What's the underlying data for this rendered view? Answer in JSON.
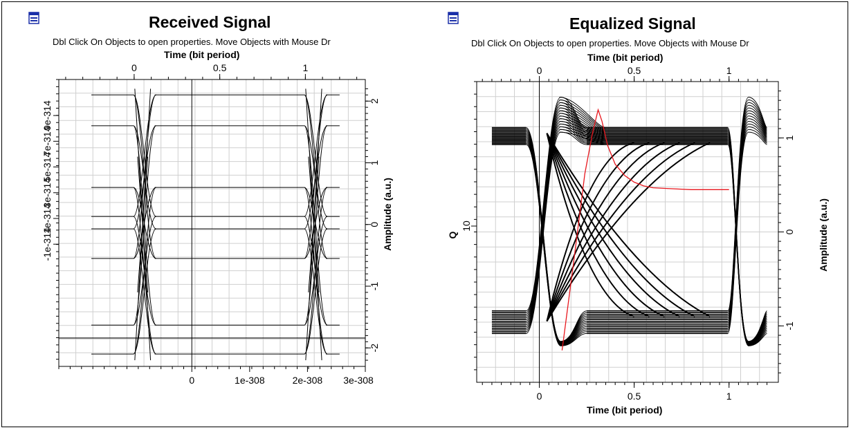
{
  "icons": {
    "left": "window-icon",
    "right": "window-icon"
  },
  "colors": {
    "trace": "#000000",
    "q_curve": "#e8161d",
    "grid": "#cfcfcf"
  },
  "chart_data": [
    {
      "type": "line",
      "title": "Received Signal",
      "subtitle": "Dbl Click On Objects to open properties.  Move Objects with Mouse Dr",
      "top_axis": {
        "label": "Time (bit period)",
        "range": [
          -0.44,
          1.35
        ],
        "ticks": [
          "0",
          "0.5",
          "1"
        ]
      },
      "bottom_axis": {
        "label": "",
        "range": [
          -2.3e-308,
          3e-308
        ],
        "ticks": [
          "0",
          "1e-308",
          "2e-308",
          "3e-308"
        ]
      },
      "left_axis": {
        "label": "",
        "range": [
          -1.05e-313,
          1.18e-313
        ],
        "ticks": [
          "-1e-314",
          "1e-314",
          "3e-314",
          "5e-314",
          "7e-314",
          "9e-314"
        ]
      },
      "right_axis": {
        "label": "Amplitude (a.u.)",
        "range": [
          -2.3,
          2.35
        ],
        "ticks": [
          "-2",
          "-1",
          "0",
          "1",
          "2"
        ]
      },
      "eye": {
        "levels": [
          2.1,
          1.6,
          0.6,
          0.13,
          -0.07,
          -0.55,
          -1.63,
          -2.1
        ],
        "left_crossing": 0.02,
        "right_crossing": 1.02,
        "transition_width": 0.1,
        "x_start": -0.25,
        "x_end": 1.2
      },
      "horizontal_line": {
        "y": -1.84
      },
      "grid": true
    },
    {
      "type": "line",
      "title": "Equalized Signal",
      "subtitle": "Dbl Click On Objects to open properties.  Move Objects with Mouse Dr",
      "top_axis": {
        "label": "Time (bit period)",
        "range": [
          -0.33,
          1.26
        ],
        "ticks": [
          "0",
          "0.5",
          "1"
        ]
      },
      "bottom_axis": {
        "label": "Time (bit period)",
        "range": [
          -0.33,
          1.26
        ],
        "ticks": [
          "0",
          "0.5",
          "1"
        ]
      },
      "left_axis": {
        "label": "Q",
        "ticks": [
          "10"
        ]
      },
      "right_axis": {
        "label": "Amplitude (a.u.)",
        "range": [
          -1.6,
          1.6
        ],
        "ticks": [
          "-1",
          "0",
          "1"
        ]
      },
      "eye": {
        "high_band": [
          0.93,
          1.11
        ],
        "low_band": [
          -1.08,
          -0.84
        ],
        "crossing": 0.04,
        "right_crossing": 1.03,
        "x_start": -0.25,
        "x_end": 1.2
      },
      "q_curve": {
        "x": [
          0.12,
          0.18,
          0.24,
          0.28,
          0.31,
          0.33,
          0.36,
          0.4,
          0.45,
          0.5,
          0.55,
          0.6,
          0.7,
          0.8,
          1.0
        ],
        "y": [
          -1.26,
          -0.34,
          0.62,
          1.05,
          1.3,
          1.18,
          0.92,
          0.72,
          0.6,
          0.53,
          0.49,
          0.47,
          0.46,
          0.45,
          0.45
        ]
      },
      "grid": true
    }
  ]
}
